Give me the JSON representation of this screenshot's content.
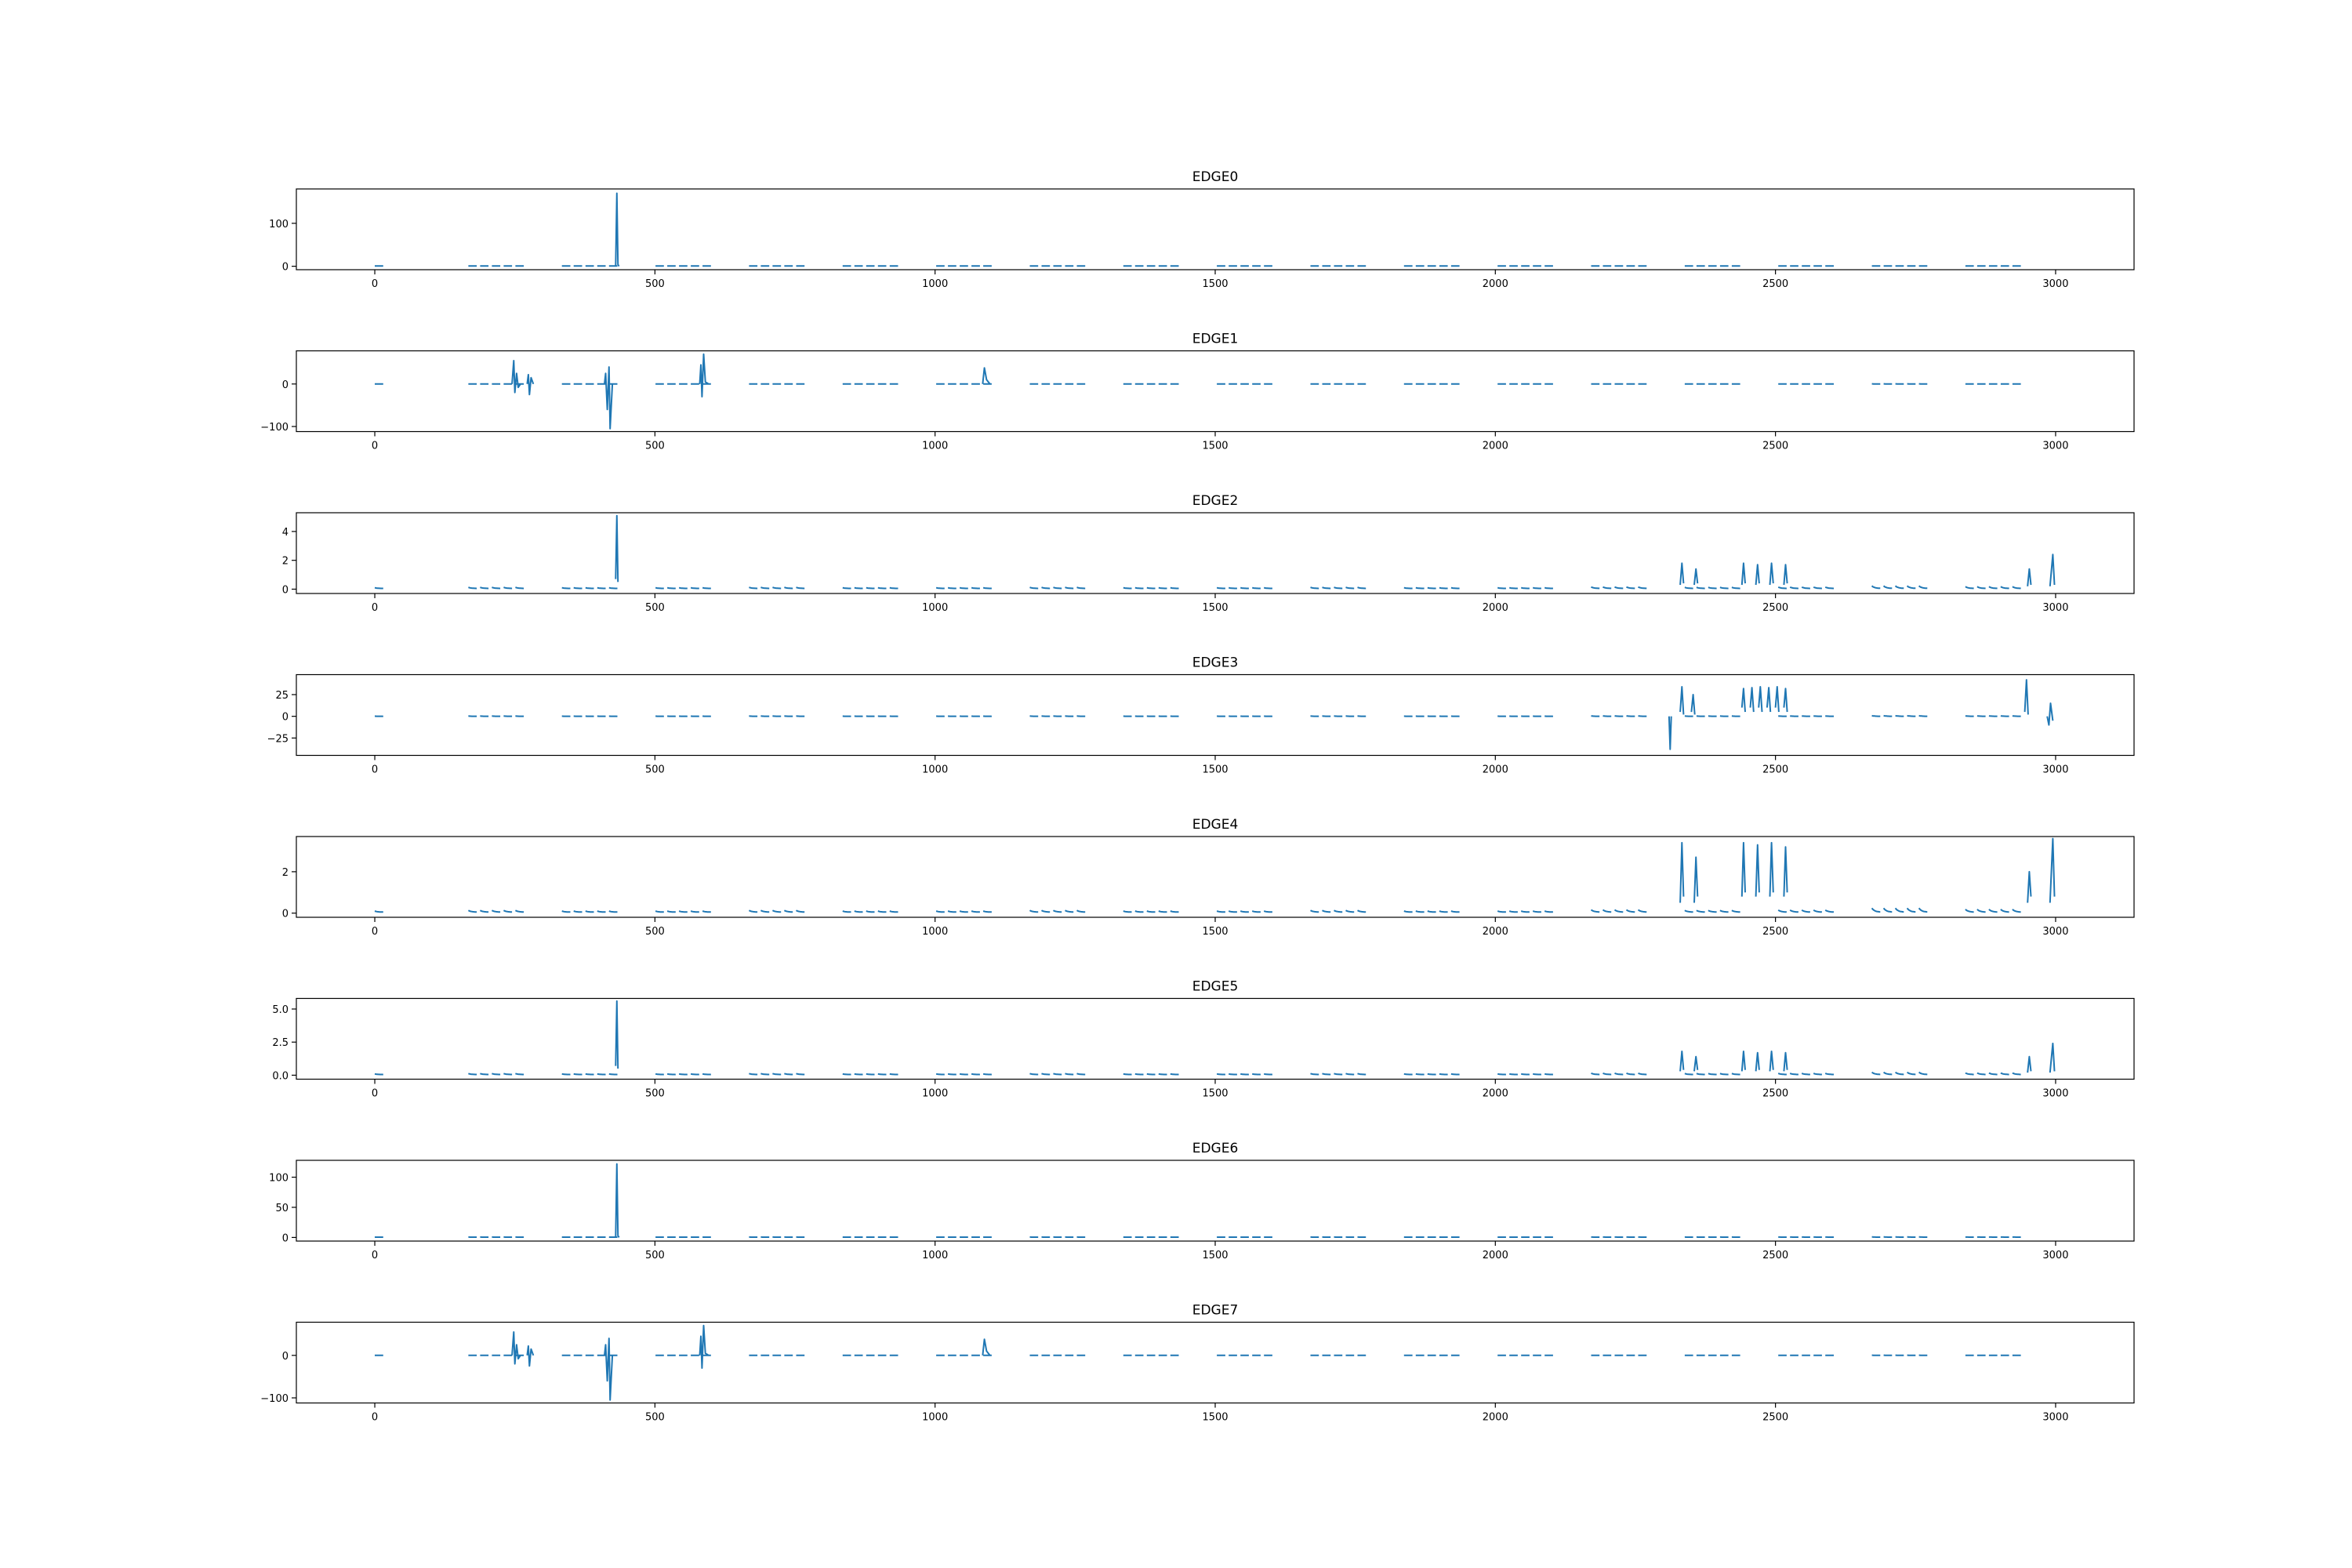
{
  "figure": {
    "line_color": "#1f77b4",
    "background": "#ffffff"
  },
  "chart_data": [
    {
      "type": "line",
      "title": "EDGE0",
      "xlim": [
        -140,
        3140
      ],
      "ylim": [
        -8,
        180
      ],
      "xticks": [
        0,
        500,
        1000,
        1500,
        2000,
        2500,
        3000
      ],
      "yticks": [
        {
          "v": 0,
          "l": "0"
        },
        {
          "v": 100,
          "l": "100"
        }
      ],
      "series": [
        {
          "baseline": 0.5,
          "pulse_amp": 0.8,
          "spike_scale": 1,
          "spikes": [
            [
              430,
              0
            ],
            [
              432,
              170
            ],
            [
              434,
              4
            ],
            [
              436,
              0
            ]
          ]
        }
      ]
    },
    {
      "type": "line",
      "title": "EDGE1",
      "xlim": [
        -140,
        3140
      ],
      "ylim": [
        -112,
        78
      ],
      "xticks": [
        0,
        500,
        1000,
        1500,
        2000,
        2500,
        3000
      ],
      "yticks": [
        {
          "v": 0,
          "l": "0"
        },
        {
          "v": -100,
          "l": "−100"
        }
      ],
      "series": [
        {
          "baseline": 0,
          "pulse_amp": 1,
          "spike_scale": 1,
          "spikes": [
            [
              245,
              0
            ],
            [
              248,
              55
            ],
            [
              250,
              -20
            ],
            [
              253,
              25
            ],
            [
              256,
              -8
            ],
            [
              260,
              0
            ],
            [
              272,
              0
            ],
            [
              274,
              22
            ],
            [
              276,
              -25
            ],
            [
              279,
              15
            ],
            [
              283,
              0
            ],
            [
              410,
              0
            ],
            [
              412,
              25
            ],
            [
              415,
              -60
            ],
            [
              418,
              40
            ],
            [
              420,
              -105
            ],
            [
              424,
              0
            ],
            [
              580,
              0
            ],
            [
              582,
              45
            ],
            [
              584,
              -30
            ],
            [
              587,
              70
            ],
            [
              590,
              5
            ],
            [
              596,
              0
            ],
            [
              1085,
              0
            ],
            [
              1088,
              38
            ],
            [
              1092,
              10
            ],
            [
              1098,
              0
            ]
          ]
        }
      ]
    },
    {
      "type": "line",
      "title": "EDGE2",
      "xlim": [
        -140,
        3140
      ],
      "ylim": [
        -0.3,
        5.3
      ],
      "xticks": [
        0,
        500,
        1000,
        1500,
        2000,
        2500,
        3000
      ],
      "yticks": [
        {
          "v": 0,
          "l": "0"
        },
        {
          "v": 2,
          "l": "2"
        },
        {
          "v": 4,
          "l": "4"
        }
      ],
      "series": [
        {
          "baseline": 0.05,
          "pulse_amp": 0.5,
          "spike_scale": 0.8,
          "spikes": [
            [
              430,
              0.7
            ],
            [
              432,
              5.1
            ],
            [
              434,
              0.5
            ],
            [
              2330,
              0.3
            ],
            [
              2333,
              1.8
            ],
            [
              2336,
              0.4
            ],
            [
              2355,
              0.3
            ],
            [
              2358,
              1.4
            ],
            [
              2361,
              0.4
            ],
            [
              2440,
              0.3
            ],
            [
              2443,
              1.8
            ],
            [
              2446,
              0.4
            ],
            [
              2465,
              0.3
            ],
            [
              2468,
              1.7
            ],
            [
              2471,
              0.4
            ],
            [
              2490,
              0.3
            ],
            [
              2493,
              1.8
            ],
            [
              2496,
              0.4
            ],
            [
              2515,
              0.3
            ],
            [
              2518,
              1.7
            ],
            [
              2521,
              0.4
            ],
            [
              2950,
              0.2
            ],
            [
              2953,
              1.4
            ],
            [
              2956,
              0.3
            ],
            [
              2990,
              0.2
            ],
            [
              2995,
              2.4
            ],
            [
              2998,
              0.3
            ]
          ]
        }
      ]
    },
    {
      "type": "line",
      "title": "EDGE3",
      "xlim": [
        -140,
        3140
      ],
      "ylim": [
        -45,
        48
      ],
      "xticks": [
        0,
        500,
        1000,
        1500,
        2000,
        2500,
        3000
      ],
      "yticks": [
        {
          "v": 25,
          "l": "25"
        },
        {
          "v": 0,
          "l": "0"
        },
        {
          "v": -25,
          "l": "−25"
        }
      ],
      "series": [
        {
          "baseline": 0,
          "pulse_amp": 2,
          "spike_scale": 15,
          "spikes": [
            [
              2310,
              0
            ],
            [
              2312,
              -38
            ],
            [
              2314,
              0
            ],
            [
              2330,
              5
            ],
            [
              2333,
              34
            ],
            [
              2336,
              2
            ],
            [
              2350,
              5
            ],
            [
              2353,
              25
            ],
            [
              2356,
              2
            ],
            [
              2440,
              10
            ],
            [
              2443,
              32
            ],
            [
              2446,
              5
            ],
            [
              2455,
              10
            ],
            [
              2458,
              33
            ],
            [
              2461,
              5
            ],
            [
              2470,
              10
            ],
            [
              2473,
              34
            ],
            [
              2476,
              5
            ],
            [
              2485,
              10
            ],
            [
              2488,
              33
            ],
            [
              2491,
              5
            ],
            [
              2500,
              10
            ],
            [
              2503,
              34
            ],
            [
              2506,
              5
            ],
            [
              2515,
              10
            ],
            [
              2518,
              32
            ],
            [
              2521,
              5
            ],
            [
              2945,
              5
            ],
            [
              2948,
              42
            ],
            [
              2951,
              2
            ],
            [
              2985,
              0
            ],
            [
              2988,
              -10
            ],
            [
              2991,
              15
            ],
            [
              2995,
              -5
            ]
          ]
        }
      ]
    },
    {
      "type": "line",
      "title": "EDGE4",
      "xlim": [
        -140,
        3140
      ],
      "ylim": [
        -0.2,
        3.7
      ],
      "xticks": [
        0,
        500,
        1000,
        1500,
        2000,
        2500,
        3000
      ],
      "yticks": [
        {
          "v": 0,
          "l": "0"
        },
        {
          "v": 2,
          "l": "2"
        }
      ],
      "series": [
        {
          "baseline": 0.05,
          "pulse_amp": 0.55,
          "spike_scale": 1.1,
          "spikes": [
            [
              2330,
              0.5
            ],
            [
              2333,
              3.4
            ],
            [
              2336,
              0.8
            ],
            [
              2355,
              0.5
            ],
            [
              2358,
              2.7
            ],
            [
              2361,
              0.8
            ],
            [
              2440,
              0.8
            ],
            [
              2443,
              3.4
            ],
            [
              2446,
              1
            ],
            [
              2465,
              0.8
            ],
            [
              2468,
              3.3
            ],
            [
              2471,
              1
            ],
            [
              2490,
              0.8
            ],
            [
              2493,
              3.4
            ],
            [
              2496,
              1
            ],
            [
              2515,
              0.8
            ],
            [
              2518,
              3.2
            ],
            [
              2521,
              1
            ],
            [
              2950,
              0.5
            ],
            [
              2953,
              2
            ],
            [
              2956,
              0.8
            ],
            [
              2990,
              0.5
            ],
            [
              2995,
              3.6
            ],
            [
              2998,
              0.8
            ]
          ]
        }
      ]
    },
    {
      "type": "line",
      "title": "EDGE5",
      "xlim": [
        -140,
        3140
      ],
      "ylim": [
        -0.3,
        5.8
      ],
      "xticks": [
        0,
        500,
        1000,
        1500,
        2000,
        2500,
        3000
      ],
      "yticks": [
        {
          "v": 0,
          "l": "0.0"
        },
        {
          "v": 2.5,
          "l": "2.5"
        },
        {
          "v": 5,
          "l": "5.0"
        }
      ],
      "series": [
        {
          "baseline": 0.05,
          "pulse_amp": 0.5,
          "spike_scale": 0.8,
          "spikes": [
            [
              430,
              0.7
            ],
            [
              432,
              5.6
            ],
            [
              434,
              0.5
            ],
            [
              2330,
              0.3
            ],
            [
              2333,
              1.8
            ],
            [
              2336,
              0.4
            ],
            [
              2355,
              0.3
            ],
            [
              2358,
              1.4
            ],
            [
              2361,
              0.4
            ],
            [
              2440,
              0.3
            ],
            [
              2443,
              1.8
            ],
            [
              2446,
              0.4
            ],
            [
              2465,
              0.3
            ],
            [
              2468,
              1.7
            ],
            [
              2471,
              0.4
            ],
            [
              2490,
              0.3
            ],
            [
              2493,
              1.8
            ],
            [
              2496,
              0.4
            ],
            [
              2515,
              0.3
            ],
            [
              2518,
              1.7
            ],
            [
              2521,
              0.4
            ],
            [
              2950,
              0.2
            ],
            [
              2953,
              1.4
            ],
            [
              2956,
              0.3
            ],
            [
              2990,
              0.2
            ],
            [
              2995,
              2.4
            ],
            [
              2998,
              0.3
            ]
          ]
        }
      ]
    },
    {
      "type": "line",
      "title": "EDGE6",
      "xlim": [
        -140,
        3140
      ],
      "ylim": [
        -6,
        128
      ],
      "xticks": [
        0,
        500,
        1000,
        1500,
        2000,
        2500,
        3000
      ],
      "yticks": [
        {
          "v": 0,
          "l": "0"
        },
        {
          "v": 50,
          "l": "50"
        },
        {
          "v": 100,
          "l": "100"
        }
      ],
      "series": [
        {
          "baseline": 0.5,
          "pulse_amp": 0.8,
          "spike_scale": 1,
          "spikes": [
            [
              430,
              0
            ],
            [
              432,
              122
            ],
            [
              434,
              3
            ],
            [
              436,
              0
            ]
          ]
        }
      ]
    },
    {
      "type": "line",
      "title": "EDGE7",
      "xlim": [
        -140,
        3140
      ],
      "ylim": [
        -112,
        78
      ],
      "xticks": [
        0,
        500,
        1000,
        1500,
        2000,
        2500,
        3000
      ],
      "yticks": [
        {
          "v": 0,
          "l": "0"
        },
        {
          "v": -100,
          "l": "−100"
        }
      ],
      "series": [
        {
          "baseline": 0,
          "pulse_amp": 1,
          "spike_scale": 1,
          "spikes": [
            [
              245,
              0
            ],
            [
              248,
              55
            ],
            [
              250,
              -20
            ],
            [
              253,
              25
            ],
            [
              256,
              -8
            ],
            [
              260,
              0
            ],
            [
              272,
              0
            ],
            [
              274,
              22
            ],
            [
              276,
              -25
            ],
            [
              279,
              15
            ],
            [
              283,
              0
            ],
            [
              410,
              0
            ],
            [
              412,
              25
            ],
            [
              415,
              -60
            ],
            [
              418,
              40
            ],
            [
              420,
              -105
            ],
            [
              424,
              0
            ],
            [
              580,
              0
            ],
            [
              582,
              45
            ],
            [
              584,
              -30
            ],
            [
              587,
              70
            ],
            [
              590,
              5
            ],
            [
              596,
              0
            ],
            [
              1085,
              0
            ],
            [
              1088,
              38
            ],
            [
              1092,
              10
            ],
            [
              1098,
              0
            ]
          ]
        }
      ]
    }
  ]
}
